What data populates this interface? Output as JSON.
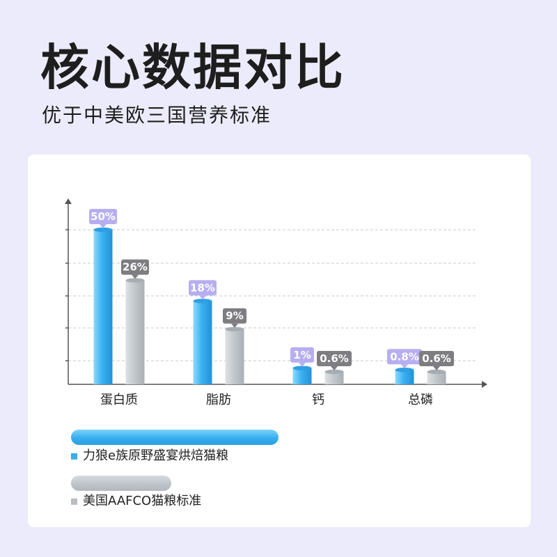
{
  "page": {
    "title": "核心数据对比",
    "subtitle": "优于中美欧三国营养标准"
  },
  "colors": {
    "primary": "#3aaeec",
    "secondary": "#bfc4c8",
    "badge_primary": "#b7aef1",
    "badge_secondary": "#7d7d82"
  },
  "chart_data": {
    "type": "bar",
    "categories": [
      "蛋白质",
      "脂肪",
      "钙",
      "总磷"
    ],
    "series": [
      {
        "name": "力狼e族原野盛宴烘焙猫粮",
        "values": [
          50,
          18,
          1,
          0.8
        ],
        "labels": [
          "50%",
          "18%",
          "1%",
          "0.8%"
        ]
      },
      {
        "name": "美国AAFCO猫粮标准",
        "values": [
          26,
          9,
          0.6,
          0.6
        ],
        "labels": [
          "26%",
          "9%",
          "0.6%",
          "0.6%"
        ]
      }
    ],
    "ylabel": "",
    "xlabel": "",
    "grid": true,
    "legend": "bottom-left"
  }
}
